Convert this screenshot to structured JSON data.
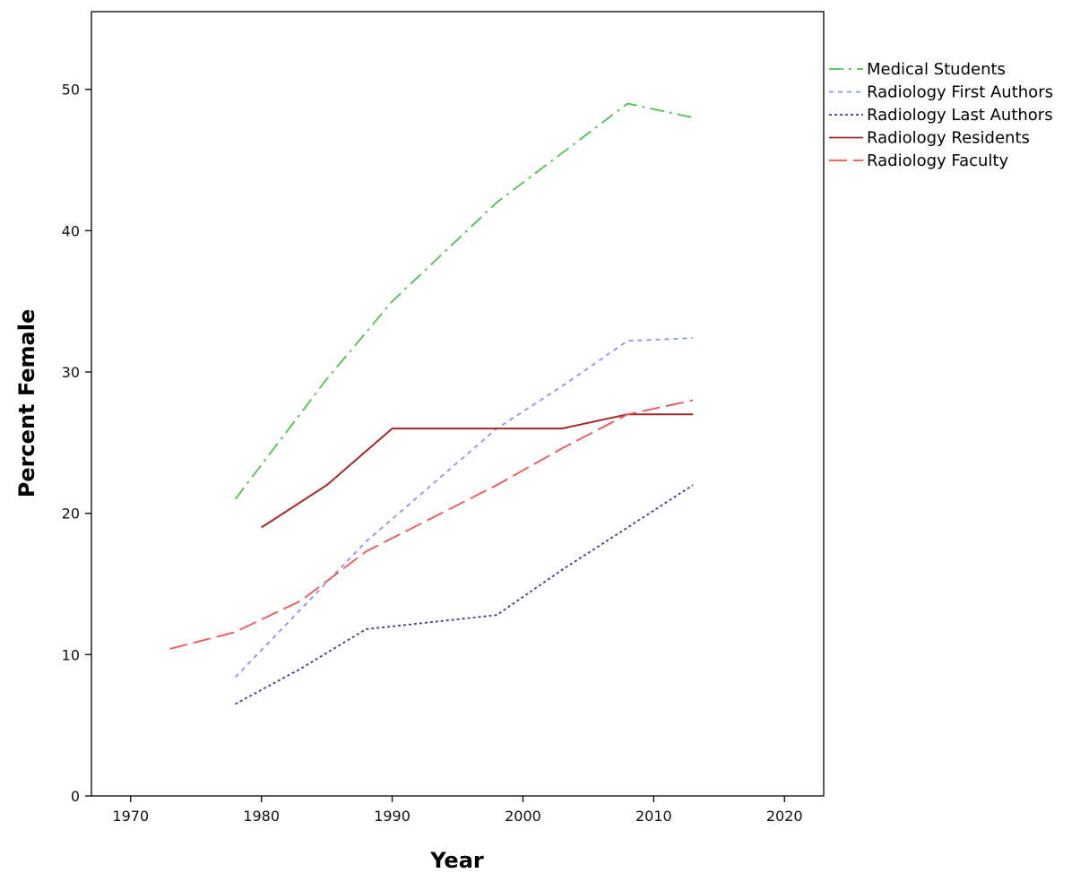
{
  "chart_data": {
    "type": "line",
    "xlabel": "Year",
    "ylabel": "Percent Female",
    "xlim": [
      1967,
      2023
    ],
    "ylim": [
      0,
      55.5
    ],
    "xticks": [
      1970,
      1980,
      1990,
      2000,
      2010,
      2020
    ],
    "yticks": [
      0,
      10,
      20,
      30,
      40,
      50
    ],
    "grid": false,
    "legend": "right, outside plot area, top",
    "series": [
      {
        "name": "Medical Students",
        "color": "#4cc24c",
        "style": "dash-dot",
        "x": [
          1978,
          1985,
          1990,
          1998,
          2003,
          2008,
          2013
        ],
        "y": [
          21,
          29.5,
          35,
          42,
          45.5,
          49,
          48
        ]
      },
      {
        "name": "Radiology First Authors",
        "color": "#8f8ff5",
        "style": "dotted",
        "x": [
          1978,
          1983,
          1988,
          1998,
          2003,
          2008,
          2013
        ],
        "y": [
          8.4,
          13.2,
          18,
          26,
          29,
          32.2,
          32.4
        ]
      },
      {
        "name": "Radiology Last Authors",
        "color": "#3a3a8c",
        "style": "fine-dotted",
        "x": [
          1978,
          1983,
          1988,
          1993,
          1998,
          2003,
          2008,
          2013
        ],
        "y": [
          6.5,
          9,
          11.8,
          12.3,
          12.8,
          16,
          19,
          22
        ]
      },
      {
        "name": "Radiology Residents",
        "color": "#a52a2a",
        "style": "solid",
        "x": [
          1980,
          1985,
          1990,
          1995,
          2003,
          2008,
          2013
        ],
        "y": [
          19,
          22,
          26,
          26,
          26,
          27,
          27
        ]
      },
      {
        "name": "Radiology Faculty",
        "color": "#f25252",
        "style": "long-dash",
        "x": [
          1973,
          1978,
          1983,
          1988,
          1998,
          2003,
          2008,
          2013
        ],
        "y": [
          10.4,
          11.6,
          13.8,
          17.3,
          22,
          24.6,
          27,
          28
        ]
      }
    ]
  }
}
